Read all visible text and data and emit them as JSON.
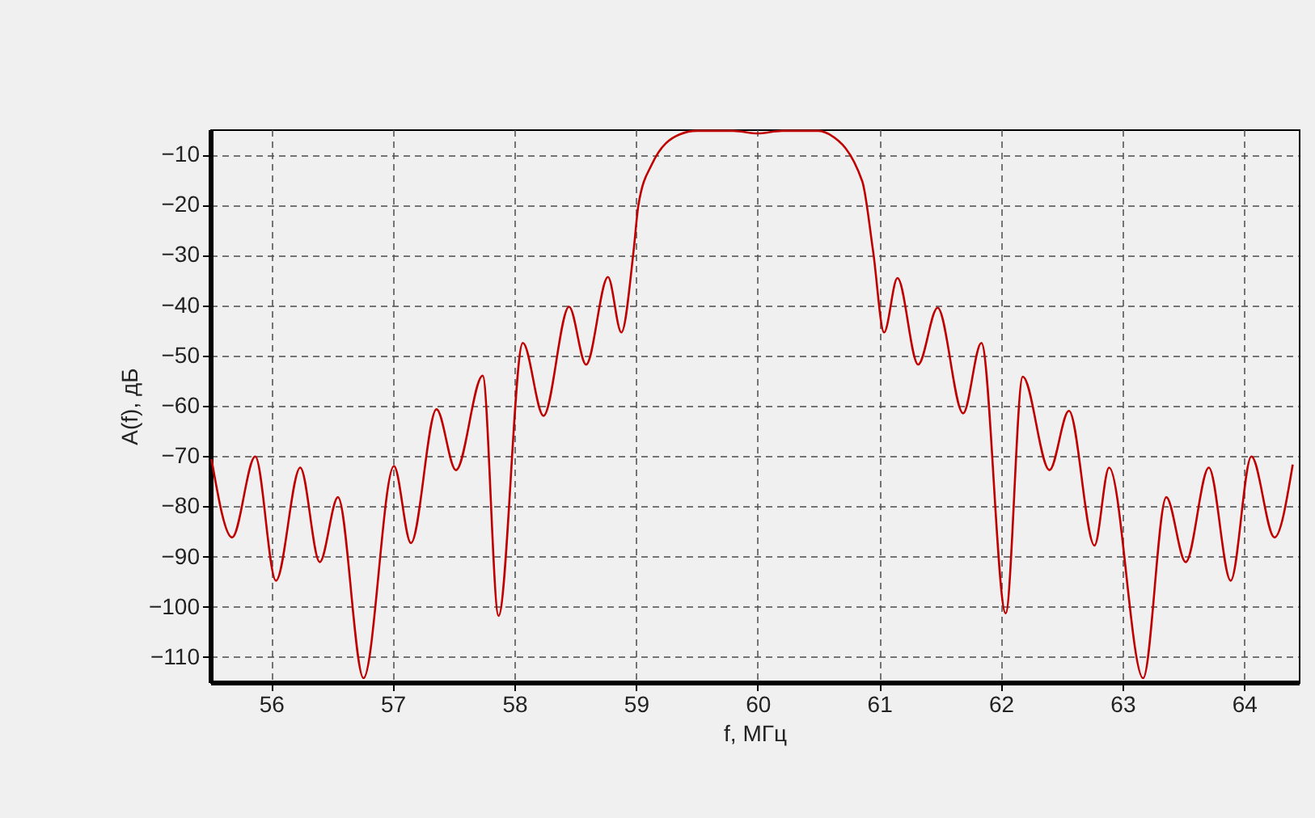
{
  "chart_data": {
    "type": "line",
    "xlabel": "f, МГц",
    "ylabel": "A(f), дБ",
    "x": [
      55.51,
      55.68,
      55.87,
      56.04,
      56.24,
      56.4,
      56.55,
      56.76,
      57.01,
      57.15,
      57.36,
      57.52,
      57.74,
      57.87,
      58.07,
      58.24,
      58.45,
      58.59,
      58.77,
      58.88,
      58.98,
      59.02,
      59.13,
      59.36,
      59.5,
      59.8,
      60.0,
      60.2,
      60.5,
      60.59,
      60.86,
      60.95,
      61.04,
      61.15,
      61.32,
      61.48,
      61.69,
      61.84,
      62.04,
      62.18,
      62.4,
      62.56,
      62.77,
      62.89,
      63.17,
      63.36,
      63.52,
      63.71,
      63.89,
      64.06,
      64.25,
      64.4
    ],
    "series": [
      {
        "color": "#c00000",
        "values": [
          -70.6,
          -86.2,
          -70.1,
          -94.8,
          -72.3,
          -91.1,
          -78.2,
          -114.2,
          -72.0,
          -87.3,
          -60.7,
          -72.8,
          -54.0,
          -101.8,
          -47.5,
          -62.0,
          -40.3,
          -51.8,
          -34.4,
          -45.4,
          -29.3,
          -20.1,
          -12.0,
          -6.0,
          -5.3,
          -5.3,
          -5.8,
          -5.3,
          -5.3,
          -6.0,
          -15.3,
          -29.3,
          -45.4,
          -34.6,
          -51.8,
          -40.5,
          -61.5,
          -47.5,
          -101.3,
          -54.2,
          -72.8,
          -61.0,
          -87.8,
          -72.3,
          -114.2,
          -78.2,
          -91.1,
          -72.3,
          -94.8,
          -70.1,
          -86.2,
          -71.7
        ]
      }
    ],
    "xlim": [
      55.5,
      64.45
    ],
    "ylim": [
      -115,
      -5
    ],
    "xticks": [
      56,
      57,
      58,
      59,
      60,
      61,
      62,
      63,
      64
    ],
    "yticks": [
      -10,
      -20,
      -30,
      -40,
      -50,
      -60,
      -70,
      -80,
      -90,
      -100,
      -110
    ],
    "grid": true,
    "legend": false,
    "marker": "none",
    "line_style": "solid"
  }
}
